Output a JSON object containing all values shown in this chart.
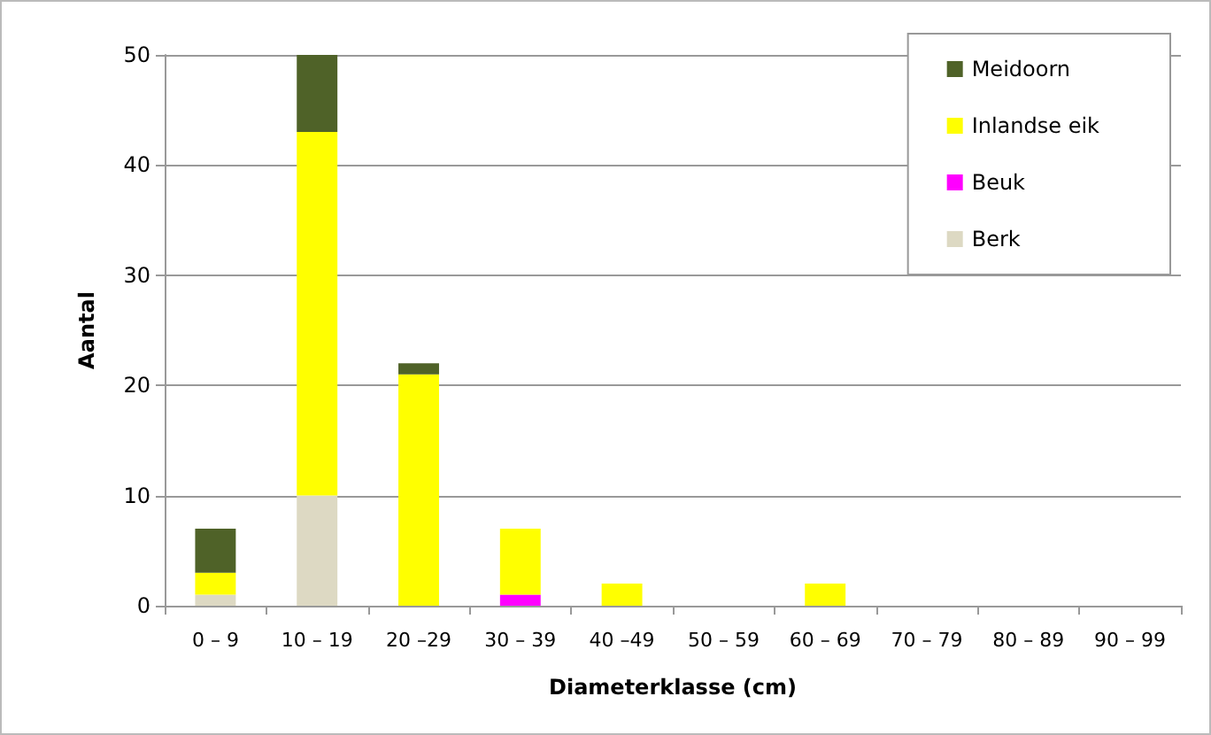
{
  "chart_data": {
    "type": "bar",
    "stacked": true,
    "xlabel": "Diameterklasse (cm)",
    "ylabel": "Aantal",
    "categories": [
      "0 – 9",
      "10 – 19",
      "20 –29",
      "30 – 39",
      "40 –49",
      "50 – 59",
      "60 – 69",
      "70 – 79",
      "80 – 89",
      "90 – 99"
    ],
    "series": [
      {
        "name": "Berk",
        "color": "#ddd9c3",
        "values": [
          1,
          10,
          0,
          0,
          0,
          0,
          0,
          0,
          0,
          0
        ]
      },
      {
        "name": "Beuk",
        "color": "#ff00ff",
        "values": [
          0,
          0,
          0,
          1,
          0,
          0,
          0,
          0,
          0,
          0
        ]
      },
      {
        "name": "Inlandse eik",
        "color": "#ffff00",
        "values": [
          2,
          33,
          21,
          6,
          2,
          0,
          2,
          0,
          0,
          0
        ]
      },
      {
        "name": "Meidoorn",
        "color": "#4f6228",
        "values": [
          4,
          7,
          1,
          0,
          0,
          0,
          0,
          0,
          0,
          0
        ]
      }
    ],
    "ylim": [
      0,
      50
    ],
    "yticks": [
      0,
      10,
      20,
      30,
      40,
      50
    ],
    "grid": "y",
    "legend": "top right"
  }
}
